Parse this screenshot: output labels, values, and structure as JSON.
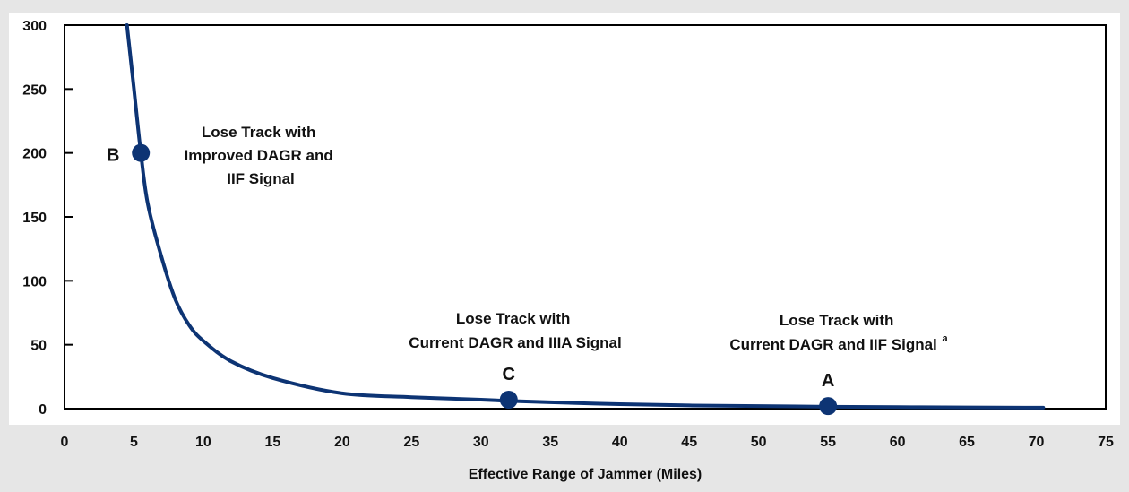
{
  "chart_data": {
    "type": "line",
    "xlabel": "Effective Range of Jammer (Miles)",
    "ylabel": "",
    "xlim": [
      0,
      75
    ],
    "ylim": [
      0,
      300
    ],
    "x_ticks": [
      "0",
      "5",
      "10",
      "15",
      "20",
      "25",
      "30",
      "35",
      "40",
      "45",
      "50",
      "55",
      "60",
      "65",
      "70",
      "75"
    ],
    "y_ticks": [
      "0",
      "50",
      "100",
      "150",
      "200",
      "250",
      "300"
    ],
    "grid": false,
    "series": [
      {
        "color": "#0d3474",
        "x": [
          4.5,
          5,
          5.5,
          6,
          7,
          8,
          9,
          10,
          12,
          15,
          20,
          25,
          30,
          32,
          35,
          40,
          45,
          50,
          55,
          60,
          65,
          70.5
        ],
        "y": [
          300,
          250,
          200,
          160,
          118,
          85,
          65,
          53,
          37,
          24,
          12,
          9,
          7,
          6,
          5,
          3.5,
          2.5,
          2,
          1.5,
          1.2,
          1,
          0.8
        ]
      }
    ],
    "points": [
      {
        "letter": "B",
        "x": 5.5,
        "y": 200
      },
      {
        "letter": "C",
        "x": 32,
        "y": 7
      },
      {
        "letter": "A",
        "x": 55,
        "y": 2
      }
    ],
    "annotations": [
      {
        "lines": [
          "Lose Track with",
          "Improved DAGR and",
          "IIF Signal"
        ],
        "sup": ""
      },
      {
        "lines": [
          "Lose Track with",
          "Current DAGR and IIIA Signal"
        ],
        "sup": ""
      },
      {
        "lines": [
          "Lose Track with",
          "Current DAGR and IIF Signal"
        ],
        "sup": "a"
      }
    ]
  }
}
